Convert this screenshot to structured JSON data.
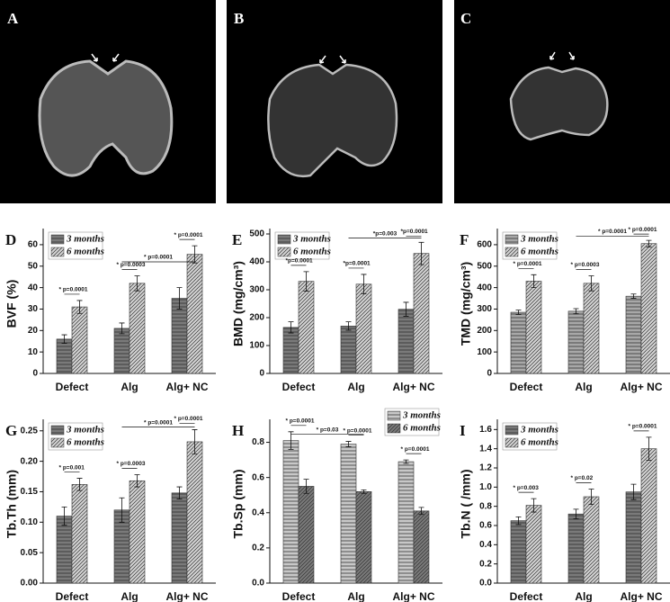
{
  "images": [
    {
      "label": "A"
    },
    {
      "label": "B"
    },
    {
      "label": "C"
    }
  ],
  "chart_data": [
    {
      "type": "bar",
      "panel": "D",
      "ylabel": "BVF (%)",
      "categories": [
        "Defect",
        "Alg",
        "Alg+ NC"
      ],
      "series": [
        {
          "name": "3 months",
          "color": "#7a7a7a",
          "hatch": "horizontal",
          "values": [
            16,
            21,
            35
          ],
          "errors": [
            2,
            2.5,
            5
          ]
        },
        {
          "name": "6 months",
          "color": "#d4d4d4",
          "hatch": "diagonal",
          "values": [
            31,
            42,
            55.5
          ],
          "errors": [
            3,
            3.5,
            4
          ]
        }
      ],
      "ylim": [
        0,
        65
      ],
      "yticks": [
        0,
        10,
        20,
        30,
        40,
        50,
        60
      ],
      "legend": "upper left",
      "annotations": [
        "* p=0.0001",
        "* p=0.0003",
        "* p=0.0001",
        "* p=0.0001"
      ]
    },
    {
      "type": "bar",
      "panel": "E",
      "ylabel": "BMD (mg/cm³)",
      "categories": [
        "Defect",
        "Alg",
        "Alg+ NC"
      ],
      "series": [
        {
          "name": "3 months",
          "color": "#7a7a7a",
          "hatch": "horizontal",
          "values": [
            165,
            170,
            230
          ],
          "errors": [
            20,
            15,
            25
          ]
        },
        {
          "name": "6 months",
          "color": "#d4d4d4",
          "hatch": "diagonal",
          "values": [
            330,
            320,
            430
          ],
          "errors": [
            35,
            35,
            40
          ]
        }
      ],
      "ylim": [
        0,
        500
      ],
      "yticks": [
        0,
        100,
        200,
        300,
        400,
        500
      ],
      "legend": "upper left",
      "annotations": [
        "*p=0.0001",
        "*p=0.0001",
        "*p=0.003",
        "*p=0.0001"
      ]
    },
    {
      "type": "bar",
      "panel": "F",
      "ylabel": "TMD (mg/cm³)",
      "categories": [
        "Defect",
        "Alg",
        "Alg+ NC"
      ],
      "series": [
        {
          "name": "3 months",
          "color": "#a8a8a8",
          "hatch": "horizontal",
          "values": [
            285,
            290,
            360
          ],
          "errors": [
            10,
            12,
            10
          ]
        },
        {
          "name": "6 months",
          "color": "#d4d4d4",
          "hatch": "diagonal",
          "values": [
            430,
            420,
            605
          ],
          "errors": [
            30,
            35,
            15
          ]
        }
      ],
      "ylim": [
        0,
        650
      ],
      "yticks": [
        0,
        100,
        200,
        300,
        400,
        500,
        600
      ],
      "legend": "upper left",
      "annotations": [
        "* p=0.0001",
        "* p=0.0003",
        "* p=0.0001",
        "* p=0.0001"
      ]
    },
    {
      "type": "bar",
      "panel": "G",
      "ylabel": "Tb.Th (mm)",
      "categories": [
        "Defect",
        "Alg",
        "Alg+ NC"
      ],
      "series": [
        {
          "name": "3 months",
          "color": "#7a7a7a",
          "hatch": "horizontal",
          "values": [
            0.11,
            0.12,
            0.148
          ],
          "errors": [
            0.015,
            0.02,
            0.01
          ]
        },
        {
          "name": "6 months",
          "color": "#d4d4d4",
          "hatch": "diagonal",
          "values": [
            0.162,
            0.168,
            0.232
          ],
          "errors": [
            0.01,
            0.01,
            0.02
          ]
        }
      ],
      "ylim": [
        0,
        0.26
      ],
      "yticks": [
        {
          "value": 0,
          "label": "0.00"
        },
        {
          "value": 0.05,
          "label": "0.05"
        },
        {
          "value": 0.1,
          "label": "0.10"
        },
        {
          "value": 0.15,
          "label": "0.15"
        },
        {
          "value": 0.2,
          "label": "0.20"
        },
        {
          "value": 0.25,
          "label": "0.25"
        }
      ],
      "legend": "upper left",
      "annotations": [
        "* p=0.001",
        "* p=0.0003",
        "* p=0.0001",
        "* p=0.0001"
      ]
    },
    {
      "type": "bar",
      "panel": "H",
      "ylabel": "Tb.Sp (mm)",
      "categories": [
        "Defect",
        "Alg",
        "Alg+ NC"
      ],
      "series": [
        {
          "name": "3 months",
          "color": "#c8c8c8",
          "hatch": "horizontal",
          "values": [
            0.81,
            0.79,
            0.69
          ],
          "errors": [
            0.05,
            0.015,
            0.01
          ]
        },
        {
          "name": "6 months",
          "color": "#7a7a7a",
          "hatch": "diagonal",
          "values": [
            0.55,
            0.52,
            0.41
          ],
          "errors": [
            0.04,
            0.01,
            0.02
          ]
        }
      ],
      "ylim": [
        0,
        0.9
      ],
      "yticks": [
        {
          "value": 0,
          "label": "0.0"
        },
        {
          "value": 0.2,
          "label": "0.2"
        },
        {
          "value": 0.4,
          "label": "0.4"
        },
        {
          "value": 0.6,
          "label": "0.6"
        },
        {
          "value": 0.8,
          "label": "0.8"
        }
      ],
      "legend": "upper right",
      "annotations": [
        "* p=0.0001",
        "* p=0.0001",
        "* p=0.03",
        "* p=0.0001"
      ]
    },
    {
      "type": "bar",
      "panel": "I",
      "ylabel": "Tb.N ( /mm)",
      "categories": [
        "Defect",
        "Alg",
        "Alg+ NC"
      ],
      "series": [
        {
          "name": "3 months",
          "color": "#7a7a7a",
          "hatch": "horizontal",
          "values": [
            0.65,
            0.72,
            0.95
          ],
          "errors": [
            0.04,
            0.05,
            0.08
          ]
        },
        {
          "name": "6 months",
          "color": "#d4d4d4",
          "hatch": "diagonal",
          "values": [
            0.81,
            0.9,
            1.4
          ],
          "errors": [
            0.07,
            0.08,
            0.12
          ]
        }
      ],
      "ylim": [
        0,
        1.65
      ],
      "yticks": [
        {
          "value": 0,
          "label": "0.0"
        },
        {
          "value": 0.2,
          "label": "0.2"
        },
        {
          "value": 0.4,
          "label": "0.4"
        },
        {
          "value": 0.6,
          "label": "0.6"
        },
        {
          "value": 0.8,
          "label": "0.8"
        },
        {
          "value": 1,
          "label": "1.0"
        },
        {
          "value": 1.2,
          "label": "1.2"
        },
        {
          "value": 1.4,
          "label": "1.4"
        },
        {
          "value": 1.6,
          "label": "1.6"
        }
      ],
      "legend": "upper left",
      "annotations": [
        "* p=0.003",
        "* p=0.02",
        "* p=0.0001"
      ]
    }
  ]
}
